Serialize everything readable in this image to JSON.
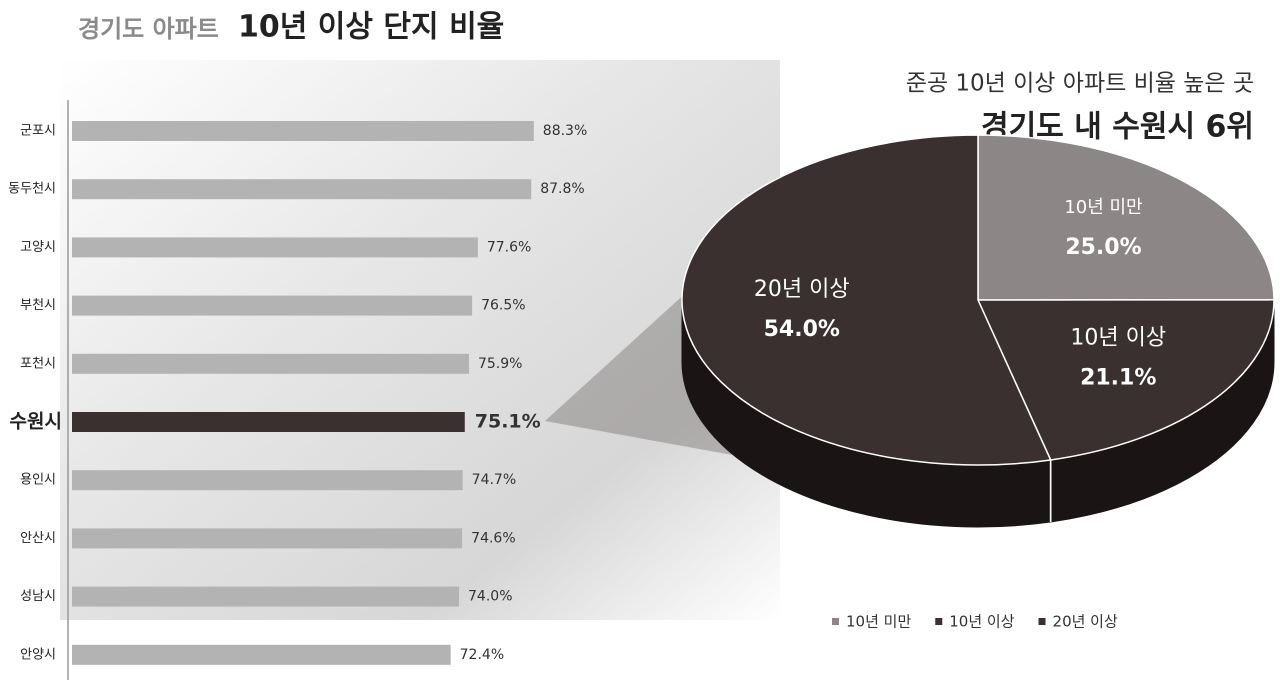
{
  "chart_data": [
    {
      "type": "bar",
      "orientation": "horizontal",
      "title": [
        "경기도 아파트",
        "10년 이상 단지 비율"
      ],
      "categories": [
        "군포시",
        "동두천시",
        "고양시",
        "부천시",
        "포천시",
        "수원시",
        "용인시",
        "안산시",
        "성남시",
        "안양시"
      ],
      "values": [
        88.3,
        87.8,
        77.6,
        76.5,
        75.9,
        75.1,
        74.7,
        74.6,
        74.0,
        72.4
      ],
      "value_labels": [
        "88.3%",
        "87.8%",
        "77.6%",
        "76.5%",
        "75.9%",
        "75.1%",
        "74.7%",
        "74.6%",
        "74.0%",
        "72.4%"
      ],
      "color": "#b3b3b3",
      "highlight_color": "#3b3030",
      "highlight_index": 5,
      "xlim": [
        0,
        100
      ]
    },
    {
      "type": "pie",
      "subtitle": "준공 10년 이상 아파트 비율 높은 곳",
      "title": "경기도 내 수원시 6위",
      "categories": [
        "10년 미만",
        "10년 이상",
        "20년 이상"
      ],
      "values": [
        25.0,
        21.1,
        54.0
      ],
      "value_labels": [
        "25.0%",
        "21.1%",
        "54.0%"
      ],
      "colors": [
        "#8c8686",
        "#3b3030",
        "#3b3030"
      ],
      "legend": "bottom"
    }
  ]
}
